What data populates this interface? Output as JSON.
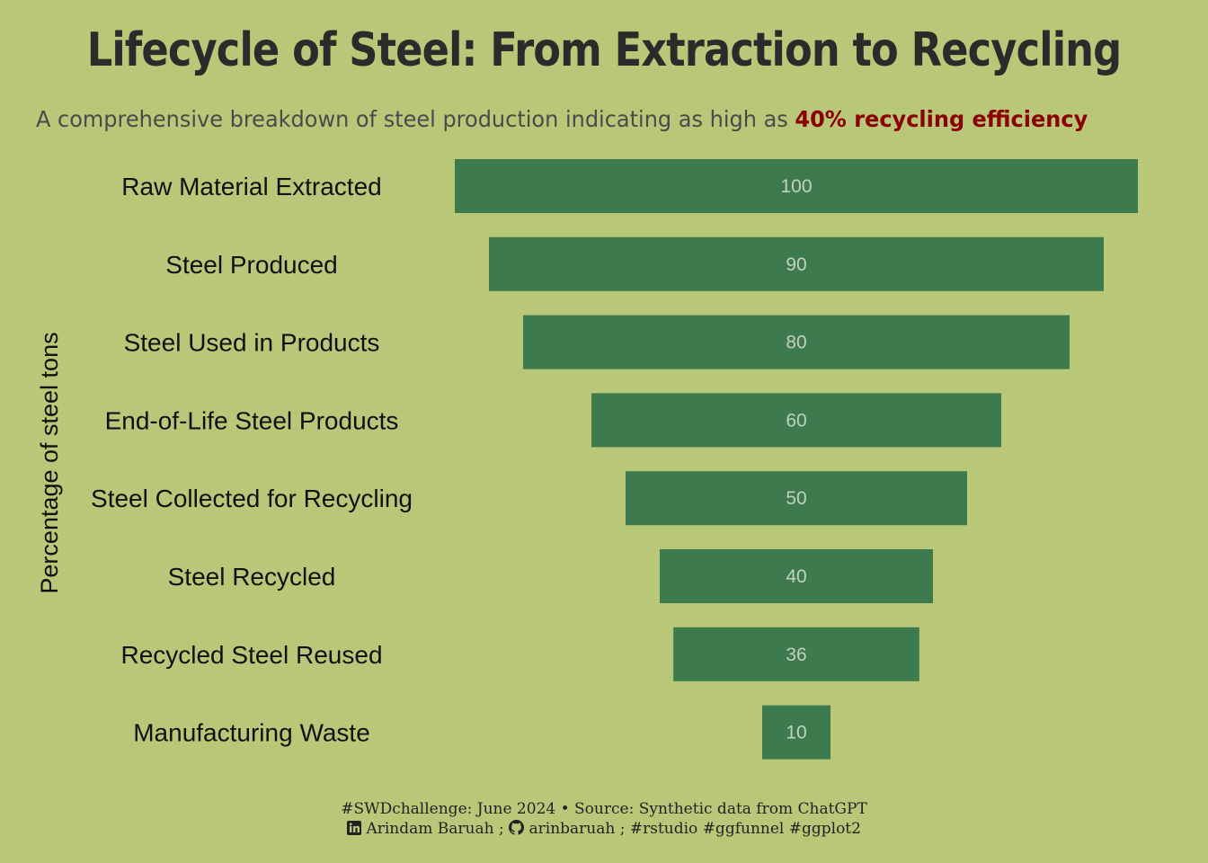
{
  "title": "Lifecycle of Steel: From Extraction to Recycling",
  "subtitle": {
    "text": "A comprehensive breakdown of steel production indicating as high as ",
    "highlight": "40% recycling efficiency",
    "highlight_color": "#8b0000"
  },
  "caption": {
    "line1": "#SWDchallenge: June 2024 • Source: Synthetic data from ChatGPT",
    "author": "Arindam Baruah ;",
    "github": "arinbaruah ; #rstudio #ggfunnel #ggplot2"
  },
  "colors": {
    "background": "#b9c878",
    "bar": "#3d7a4d",
    "value_label": "#c4d0c0"
  },
  "icons": [
    "linkedin-icon",
    "github-icon"
  ],
  "chart_data": {
    "type": "bar",
    "subtype": "funnel",
    "ylabel": "Percentage of steel tons",
    "categories": [
      "Raw Material Extracted",
      "Steel Produced",
      "Steel Used in Products",
      "End-of-Life Steel Products",
      "Steel Collected for Recycling",
      "Steel Recycled",
      "Recycled Steel Reused",
      "Manufacturing Waste"
    ],
    "values": [
      100,
      90,
      80,
      60,
      50,
      40,
      36,
      10
    ],
    "xlim": [
      0,
      100
    ],
    "grid": false,
    "legend": "none"
  }
}
